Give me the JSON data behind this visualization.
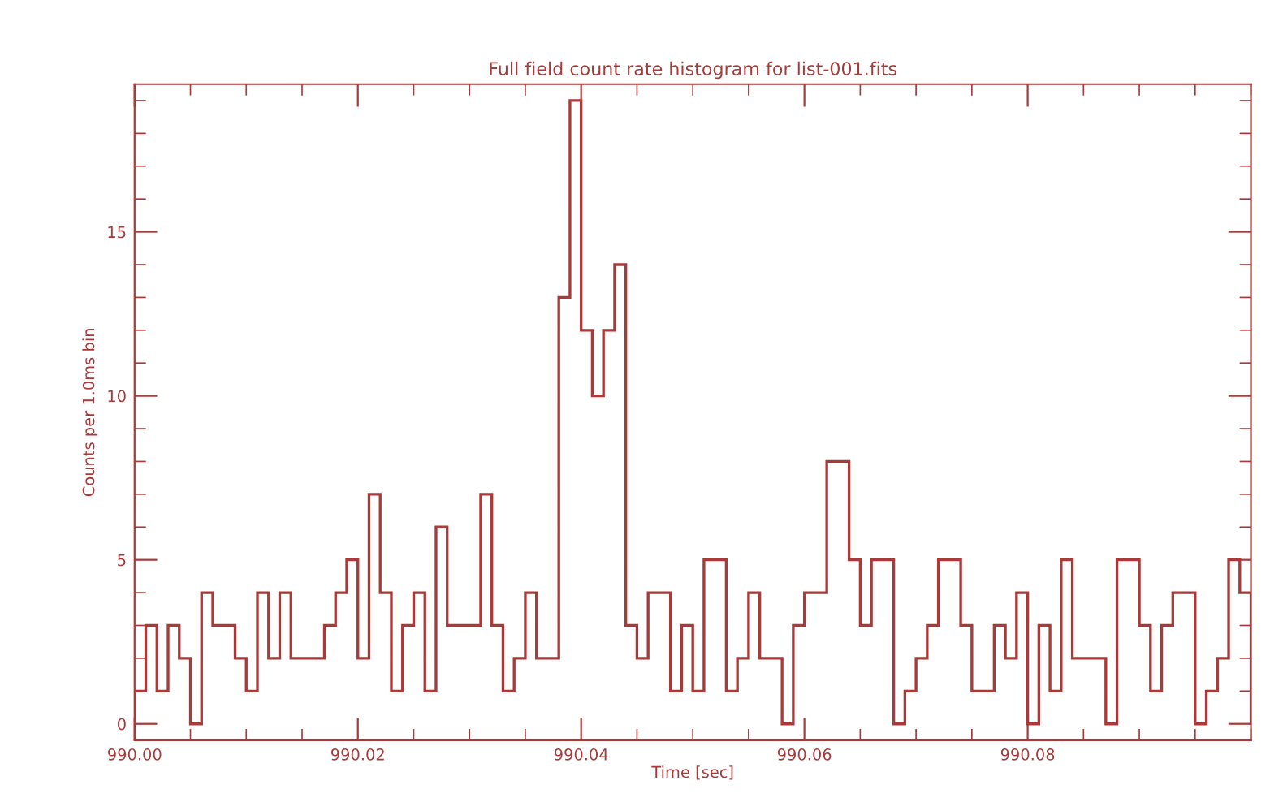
{
  "chart_data": {
    "type": "histogram",
    "title": "Full field count rate histogram for list-001.fits",
    "xlabel": "Time [sec]",
    "ylabel": "Counts per 1.0ms bin",
    "color": "#a83a3a",
    "bins": [
      990.0,
      990.001,
      990.002,
      990.003,
      990.004,
      990.005,
      990.006,
      990.007,
      990.008,
      990.009,
      990.01,
      990.011,
      990.012,
      990.013,
      990.014,
      990.015,
      990.016,
      990.017,
      990.018,
      990.019,
      990.02,
      990.021,
      990.022,
      990.023,
      990.024,
      990.025,
      990.026,
      990.027,
      990.028,
      990.029,
      990.03,
      990.031,
      990.032,
      990.033,
      990.034,
      990.035,
      990.036,
      990.037,
      990.038,
      990.039,
      990.04,
      990.041,
      990.042,
      990.043,
      990.044,
      990.045,
      990.046,
      990.047,
      990.048,
      990.049,
      990.05,
      990.051,
      990.052,
      990.053,
      990.054,
      990.055,
      990.056,
      990.057,
      990.058,
      990.059,
      990.06,
      990.061,
      990.062,
      990.063,
      990.064,
      990.065,
      990.066,
      990.067,
      990.068,
      990.069,
      990.07,
      990.071,
      990.072,
      990.073,
      990.074,
      990.075,
      990.076,
      990.077,
      990.078,
      990.079,
      990.08,
      990.081,
      990.082,
      990.083,
      990.084,
      990.085,
      990.086,
      990.087,
      990.088,
      990.089,
      990.09,
      990.091,
      990.092,
      990.093,
      990.094,
      990.095,
      990.096,
      990.097,
      990.098,
      990.099,
      990.1
    ],
    "values": [
      1,
      3,
      1,
      3,
      2,
      0,
      4,
      3,
      3,
      2,
      1,
      4,
      2,
      4,
      2,
      2,
      2,
      3,
      4,
      5,
      2,
      7,
      4,
      1,
      3,
      4,
      1,
      6,
      3,
      3,
      3,
      7,
      3,
      1,
      2,
      4,
      2,
      2,
      13,
      19,
      12,
      10,
      12,
      14,
      3,
      2,
      4,
      4,
      1,
      3,
      1,
      5,
      5,
      1,
      2,
      4,
      2,
      2,
      0,
      3,
      4,
      4,
      8,
      8,
      5,
      3,
      5,
      5,
      0,
      1,
      2,
      3,
      5,
      5,
      3,
      1,
      1,
      3,
      2,
      4,
      0,
      3,
      1,
      5,
      2,
      2,
      2,
      0,
      5,
      5,
      3,
      1,
      3,
      4,
      4,
      0,
      1,
      2,
      5,
      4
    ],
    "xlim": [
      990.0,
      990.1
    ],
    "xticks": [
      {
        "value": 990.0,
        "label": "990.00"
      },
      {
        "value": 990.005,
        "label": null
      },
      {
        "value": 990.01,
        "label": null
      },
      {
        "value": 990.015,
        "label": null
      },
      {
        "value": 990.02,
        "label": "990.02"
      },
      {
        "value": 990.025,
        "label": null
      },
      {
        "value": 990.03,
        "label": null
      },
      {
        "value": 990.035,
        "label": null
      },
      {
        "value": 990.04,
        "label": "990.04"
      },
      {
        "value": 990.045,
        "label": null
      },
      {
        "value": 990.05,
        "label": null
      },
      {
        "value": 990.055,
        "label": null
      },
      {
        "value": 990.06,
        "label": "990.06"
      },
      {
        "value": 990.065,
        "label": null
      },
      {
        "value": 990.07,
        "label": null
      },
      {
        "value": 990.075,
        "label": null
      },
      {
        "value": 990.08,
        "label": "990.08"
      },
      {
        "value": 990.085,
        "label": null
      },
      {
        "value": 990.09,
        "label": null
      },
      {
        "value": 990.095,
        "label": null
      },
      {
        "value": 990.1,
        "label": null
      }
    ],
    "ylim": [
      -0.5,
      19.5
    ],
    "yticks": [
      0,
      {
        "value": 1,
        "label": null
      },
      {
        "value": 2,
        "label": null
      },
      {
        "value": 3,
        "label": null
      },
      {
        "value": 4,
        "label": null
      },
      5,
      {
        "value": 6,
        "label": null
      },
      {
        "value": 7,
        "label": null
      },
      {
        "value": 8,
        "label": null
      },
      {
        "value": 9,
        "label": null
      },
      10,
      {
        "value": 11,
        "label": null
      },
      {
        "value": 12,
        "label": null
      },
      {
        "value": 13,
        "label": null
      },
      {
        "value": 14,
        "label": null
      },
      15,
      {
        "value": 16,
        "label": null
      },
      {
        "value": 17,
        "label": null
      },
      {
        "value": 18,
        "label": null
      },
      {
        "value": 19,
        "label": null
      }
    ]
  }
}
